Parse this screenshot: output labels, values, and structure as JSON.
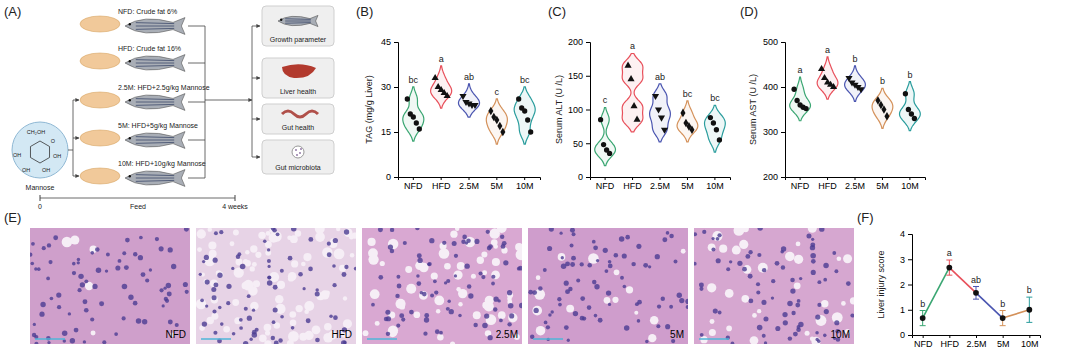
{
  "chart_data": [
    {
      "type": "violin",
      "title": "(B)",
      "y_label": "TAG (mg/g Liver)",
      "ylim": [
        0,
        45
      ],
      "yticks": [
        0,
        15,
        30,
        45
      ],
      "annotations": [
        "bc",
        "a",
        "ab",
        "c",
        "bc"
      ],
      "series": [
        {
          "name": "NFD",
          "color": "#3aa672",
          "marker": "circle",
          "values": [
            26,
            21,
            20,
            18,
            16
          ]
        },
        {
          "name": "HFD",
          "color": "#e8505b",
          "marker": "triangle",
          "values": [
            33,
            30,
            29,
            28,
            27
          ]
        },
        {
          "name": "2.5M",
          "color": "#4a55b0",
          "marker": "triangle-down",
          "values": [
            27,
            25,
            24.5,
            24,
            24
          ]
        },
        {
          "name": "5M",
          "color": "#d4915a",
          "marker": "diamond",
          "values": [
            22,
            20,
            19,
            17,
            15
          ]
        },
        {
          "name": "10M",
          "color": "#2a9d9d",
          "marker": "circle",
          "values": [
            26,
            23,
            22,
            19,
            15
          ]
        }
      ]
    },
    {
      "type": "violin",
      "title": "(C)",
      "y_label": "Serum ALT (U /L)",
      "ylim": [
        0,
        200
      ],
      "yticks": [
        0,
        50,
        100,
        150,
        200
      ],
      "annotations": [
        "c",
        "a",
        "ab",
        "bc",
        "bc"
      ],
      "series": [
        {
          "name": "NFD",
          "color": "#3aa672",
          "marker": "circle",
          "values": [
            85,
            48,
            40,
            35
          ]
        },
        {
          "name": "HFD",
          "color": "#e8505b",
          "marker": "triangle",
          "values": [
            165,
            145,
            105,
            85
          ]
        },
        {
          "name": "2.5M",
          "color": "#4a55b0",
          "marker": "triangle-down",
          "values": [
            120,
            100,
            88,
            70
          ]
        },
        {
          "name": "5M",
          "color": "#d4915a",
          "marker": "diamond",
          "values": [
            95,
            80,
            75,
            70
          ]
        },
        {
          "name": "10M",
          "color": "#2a9d9d",
          "marker": "circle",
          "values": [
            88,
            80,
            70,
            55
          ]
        }
      ]
    },
    {
      "type": "violin",
      "title": "(D)",
      "y_label": "Serum AST (U /L)",
      "ylim": [
        200,
        500
      ],
      "yticks": [
        200,
        300,
        400,
        500
      ],
      "annotations": [
        "a",
        "a",
        "b",
        "b",
        "b"
      ],
      "series": [
        {
          "name": "NFD",
          "color": "#3aa672",
          "marker": "circle",
          "values": [
            395,
            370,
            360,
            355,
            352
          ]
        },
        {
          "name": "HFD",
          "color": "#e8505b",
          "marker": "triangle",
          "values": [
            440,
            420,
            410,
            405,
            400
          ]
        },
        {
          "name": "2.5M",
          "color": "#4a55b0",
          "marker": "triangle-down",
          "values": [
            420,
            410,
            405,
            400,
            395
          ]
        },
        {
          "name": "5M",
          "color": "#d4915a",
          "marker": "diamond",
          "values": [
            370,
            360,
            350,
            335
          ]
        },
        {
          "name": "10M",
          "color": "#2a9d9d",
          "marker": "circle",
          "values": [
            385,
            350,
            340,
            330
          ]
        }
      ]
    },
    {
      "type": "line",
      "title": "(F)",
      "y_label": "Liver injury score",
      "marker": "circle",
      "categories": [
        "NFD",
        "HFD",
        "2.5M",
        "5M",
        "10M"
      ],
      "values": [
        0.67,
        2.67,
        1.67,
        0.67,
        1.0
      ],
      "errors": [
        0.3,
        0.3,
        0.25,
        0.3,
        0.5
      ],
      "colors": [
        "#3aa672",
        "#e8505b",
        "#4a55b0",
        "#d4915a",
        "#2a9d9d"
      ],
      "annotations": [
        "b",
        "a",
        "ab",
        "b",
        "b"
      ],
      "ylim": [
        0,
        4
      ],
      "yticks": [
        0,
        1,
        2,
        3,
        4
      ]
    }
  ],
  "diagram": {
    "title": "(A)",
    "molecule": {
      "name": "Mannose",
      "atoms": [
        "CH₂OH",
        "O",
        "OH",
        "OH",
        "OH",
        "OH"
      ]
    },
    "groups": [
      "NFD: Crude fat 6%",
      "HFD: Crude fat 16%",
      "2.5M: HFD+2.5g/kg Mannose",
      "5M: HFD+5g/kg Mannose",
      "10M: HFD+10g/kg Mannose"
    ],
    "outcomes": [
      "Growth parameter",
      "Liver health",
      "Gut health",
      "Gut microbiota"
    ],
    "timeline": {
      "start": "0",
      "label": "Feed",
      "end": "4 weeks"
    }
  },
  "images": {
    "title": "(E)",
    "panels": [
      "NFD",
      "HFD",
      "2.5M",
      "5M",
      "10M"
    ]
  }
}
